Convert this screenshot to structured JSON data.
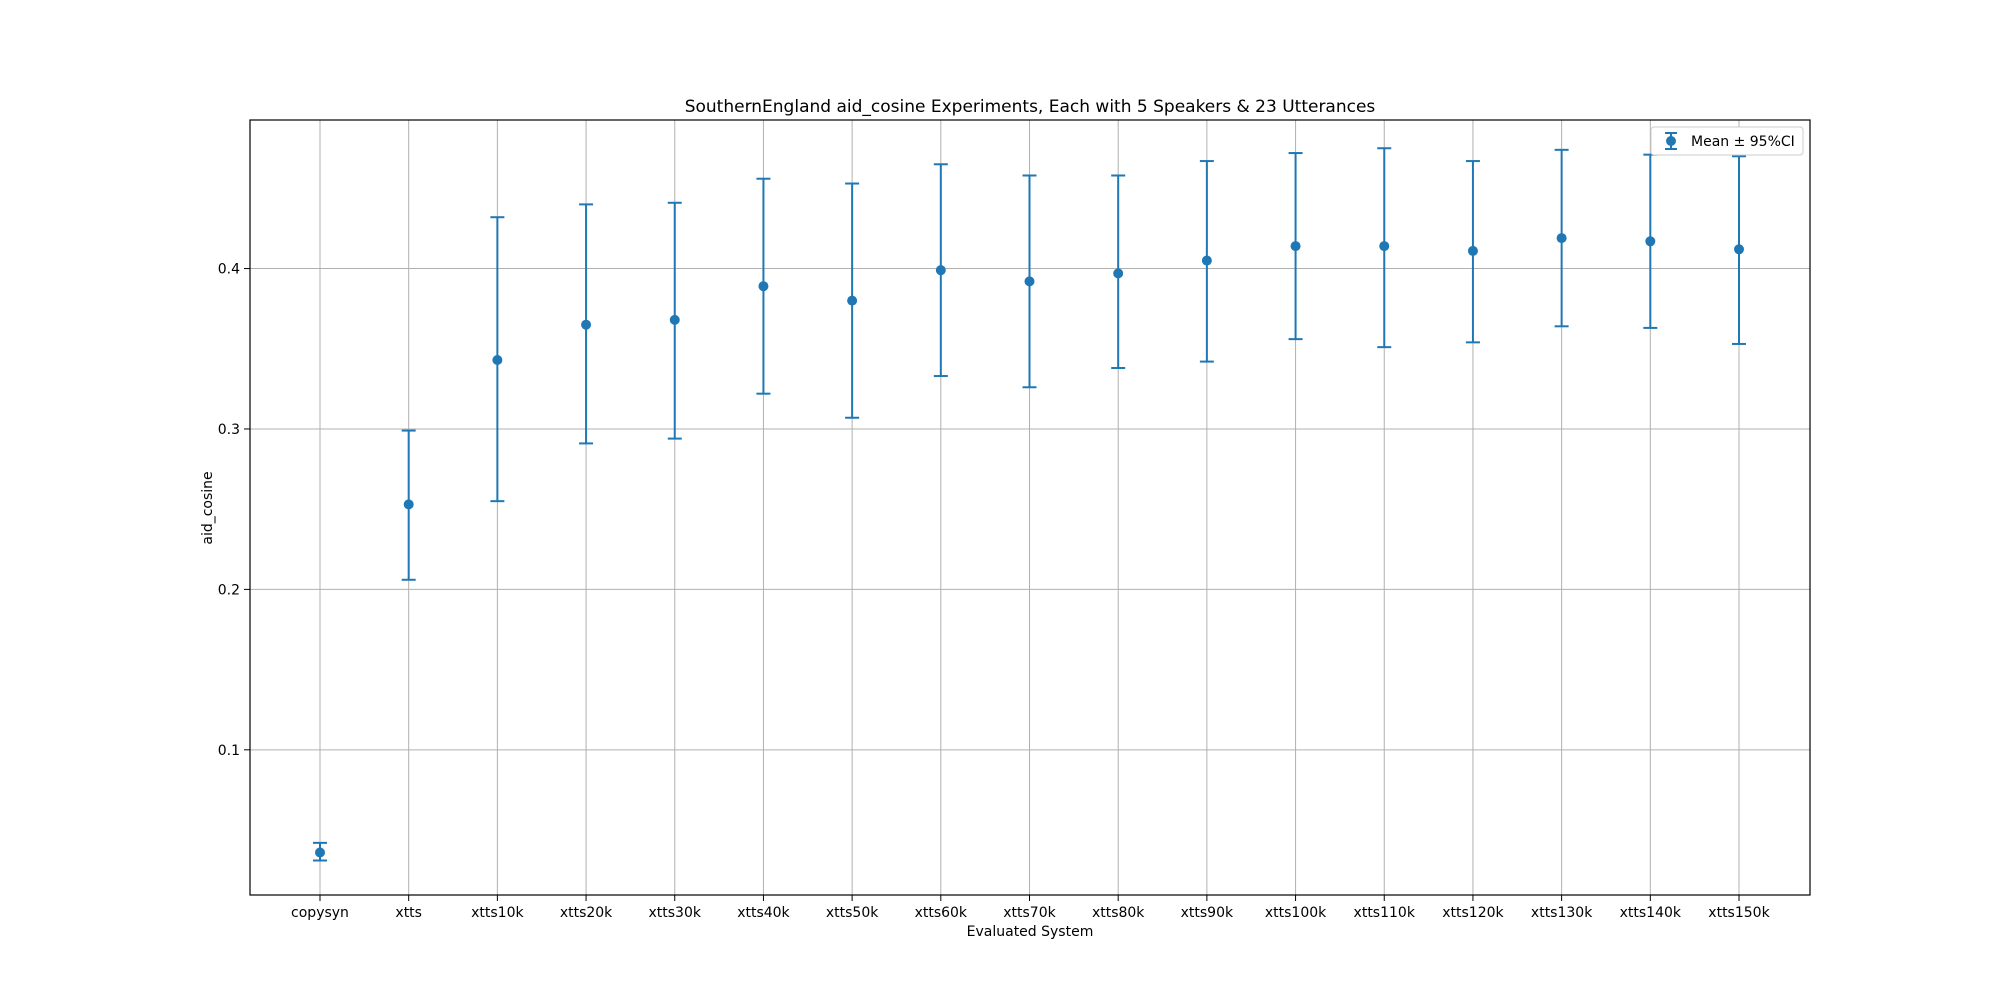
{
  "chart_data": {
    "type": "scatter",
    "title": "SouthernEngland aid_cosine Experiments, Each with 5 Speakers & 23 Utterances",
    "xlabel": "Evaluated System",
    "ylabel": "aid_cosine",
    "categories": [
      "copysyn",
      "xtts",
      "xtts10k",
      "xtts20k",
      "xtts30k",
      "xtts40k",
      "xtts50k",
      "xtts60k",
      "xtts70k",
      "xtts80k",
      "xtts90k",
      "xtts100k",
      "xtts110k",
      "xtts120k",
      "xtts130k",
      "xtts140k",
      "xtts150k"
    ],
    "series": [
      {
        "name": "Mean ± 95%CI",
        "mean": [
          0.036,
          0.253,
          0.343,
          0.365,
          0.368,
          0.389,
          0.38,
          0.399,
          0.392,
          0.397,
          0.405,
          0.414,
          0.414,
          0.411,
          0.419,
          0.417,
          0.412
        ],
        "lower": [
          0.031,
          0.206,
          0.255,
          0.291,
          0.294,
          0.322,
          0.307,
          0.333,
          0.326,
          0.338,
          0.342,
          0.356,
          0.351,
          0.354,
          0.364,
          0.363,
          0.353
        ],
        "upper": [
          0.042,
          0.299,
          0.432,
          0.44,
          0.441,
          0.456,
          0.453,
          0.465,
          0.458,
          0.458,
          0.467,
          0.472,
          0.475,
          0.467,
          0.474,
          0.471,
          0.47
        ]
      }
    ],
    "yticks": [
      "0.1",
      "0.2",
      "0.3",
      "0.4"
    ],
    "ylim": [
      0.0095,
      0.4926
    ],
    "grid": true,
    "legend_position": "top-right",
    "color": "#1f77b4"
  }
}
